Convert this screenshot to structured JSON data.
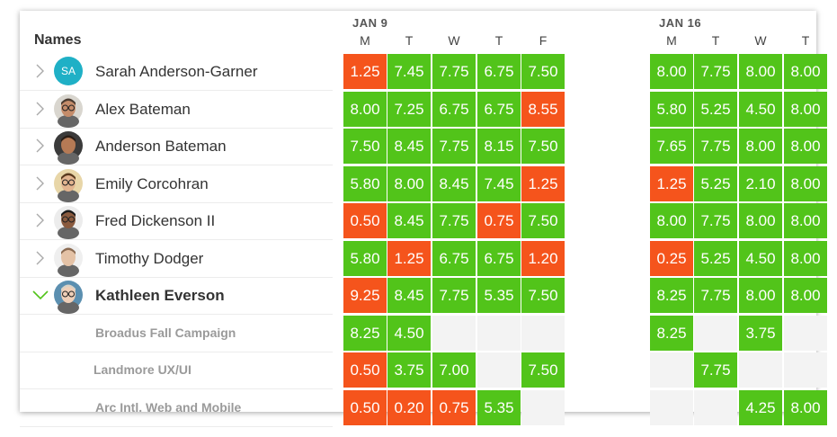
{
  "header": {
    "names_label": "Names"
  },
  "weeks": [
    {
      "label": "JAN 9",
      "days": [
        "M",
        "T",
        "W",
        "T",
        "F"
      ]
    },
    {
      "label": "JAN 16",
      "days": [
        "M",
        "T",
        "W",
        "T"
      ]
    }
  ],
  "people": [
    {
      "name": "Sarah Anderson-Garner",
      "avatar": {
        "type": "initials",
        "text": "SA"
      },
      "expanded": false,
      "week1": [
        "1.25",
        "7.45",
        "7.75",
        "6.75",
        "7.50"
      ],
      "week2": [
        "8.00",
        "7.75",
        "8.00",
        "8.00"
      ]
    },
    {
      "name": "Alex Bateman",
      "avatar": {
        "type": "photo"
      },
      "expanded": false,
      "week1": [
        "8.00",
        "7.25",
        "6.75",
        "6.75",
        "8.55"
      ],
      "week2": [
        "5.80",
        "5.25",
        "4.50",
        "8.00"
      ]
    },
    {
      "name": "Anderson Bateman",
      "avatar": {
        "type": "photo"
      },
      "expanded": false,
      "week1": [
        "7.50",
        "8.45",
        "7.75",
        "8.15",
        "7.50"
      ],
      "week2": [
        "7.65",
        "7.75",
        "8.00",
        "8.00"
      ]
    },
    {
      "name": "Emily Corcohran",
      "avatar": {
        "type": "photo"
      },
      "expanded": false,
      "week1": [
        "5.80",
        "8.00",
        "8.45",
        "7.45",
        "1.25"
      ],
      "week2": [
        "1.25",
        "5.25",
        "2.10",
        "8.00"
      ]
    },
    {
      "name": "Fred Dickenson II",
      "avatar": {
        "type": "photo"
      },
      "expanded": false,
      "week1": [
        "0.50",
        "8.45",
        "7.75",
        "0.75",
        "7.50"
      ],
      "week2": [
        "8.00",
        "7.75",
        "8.00",
        "8.00"
      ]
    },
    {
      "name": "Timothy Dodger",
      "avatar": {
        "type": "photo"
      },
      "expanded": false,
      "week1": [
        "5.80",
        "1.25",
        "6.75",
        "6.75",
        "1.20"
      ],
      "week2": [
        "0.25",
        "5.25",
        "4.50",
        "8.00"
      ]
    },
    {
      "name": "Kathleen Everson",
      "avatar": {
        "type": "photo"
      },
      "expanded": true,
      "week1": [
        "9.25",
        "8.45",
        "7.75",
        "5.35",
        "7.50"
      ],
      "week2": [
        "8.25",
        "7.75",
        "8.00",
        "8.00"
      ]
    }
  ],
  "projects": [
    {
      "name": "Broadus Fall Campaign",
      "week1": [
        "8.25",
        "4.50",
        "",
        "",
        ""
      ],
      "week2": [
        "8.25",
        "",
        "3.75",
        ""
      ]
    },
    {
      "name": "Landmore UX/UI",
      "week1": [
        "0.50",
        "3.75",
        "7.00",
        "",
        "7.50"
      ],
      "week2": [
        "",
        "7.75",
        "",
        ""
      ]
    },
    {
      "name": "Arc Intl. Web and Mobile",
      "week1": [
        "0.50",
        "0.20",
        "0.75",
        "5.35",
        ""
      ],
      "week2": [
        "",
        "",
        "4.25",
        "8.00"
      ]
    }
  ],
  "status_colors": {
    "ok": "#52c41a",
    "alert": "#f5541c",
    "empty": "#f3f3f3",
    "chevron_open": "#52c41a",
    "chevron_closed": "#aaaaaa"
  }
}
